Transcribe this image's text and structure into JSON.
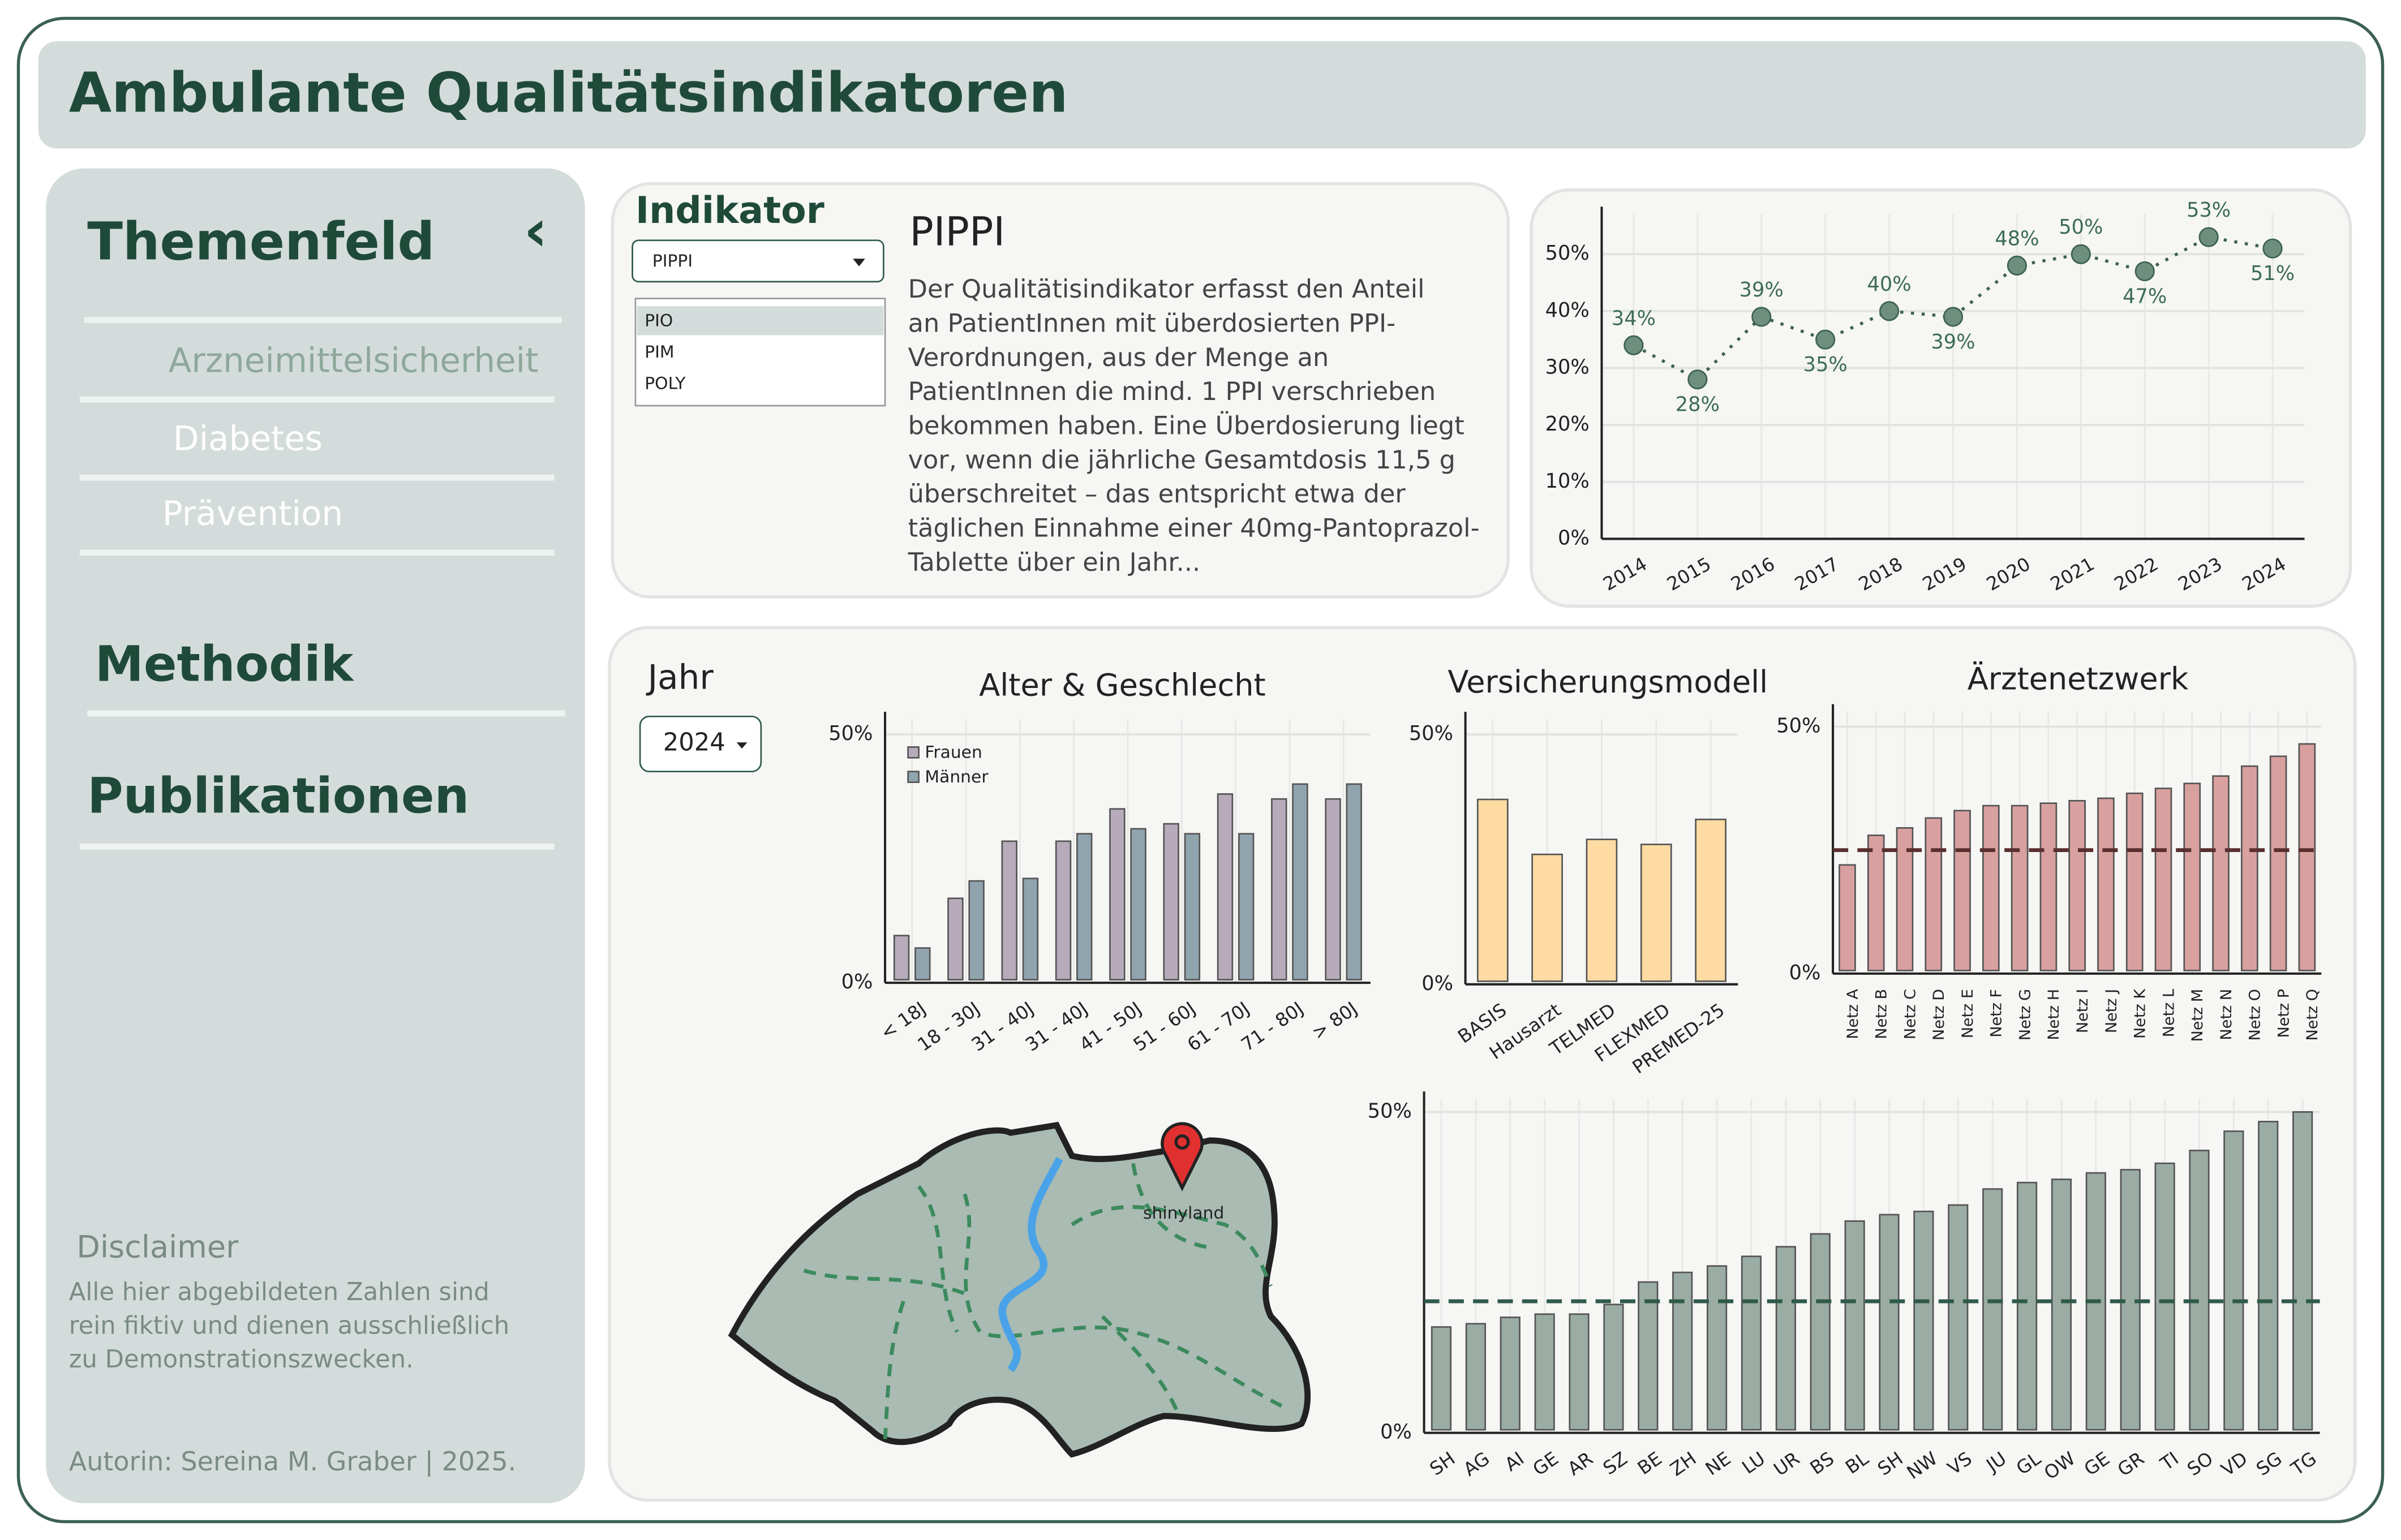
{
  "header": {
    "title": "Ambulante Qualitätsindikatoren"
  },
  "sidebar": {
    "themenfeld": "Themenfeld",
    "collapse_icon": "‹",
    "items": [
      "Arzneimittelsicherheit",
      "Diabetes",
      "Prävention"
    ],
    "methodik": "Methodik",
    "publikationen": "Publikationen",
    "disclaimer_title": "Disclaimer",
    "disclaimer_lines": [
      "Alle hier abgebildeten Zahlen sind",
      "rein fiktiv und dienen ausschließlich",
      "zu Demonstrationszwecken."
    ],
    "author": "Autorin: Sereina M. Graber | 2025."
  },
  "indicator": {
    "label": "Indikator",
    "selected": "PIPPI",
    "options": [
      "PIO",
      "PIM",
      "POLY"
    ],
    "heading": "PIPPI",
    "description_lines": [
      "Der Qualitätisindikator erfasst den Anteil",
      "an PatientInnen mit überdosierten PPI-",
      "Verordnungen, aus der Menge an",
      "PatientInnen die mind. 1 PPI verschrieben",
      "bekommen haben. Eine Überdosierung liegt",
      "vor, wenn die jährliche Gesamtdosis 11,5 g",
      "überschreitet – das entspricht etwa der",
      "täglichen Einnahme einer 40mg-Pantoprazol-",
      "Tablette über ein Jahr..."
    ]
  },
  "year_filter": {
    "label": "Jahr",
    "selected": "2024"
  },
  "map": {
    "label": "shinyland"
  },
  "chart_data": [
    {
      "type": "line",
      "categories": [
        "2014",
        "2015",
        "2016",
        "2017",
        "2018",
        "2019",
        "2020",
        "2021",
        "2022",
        "2023",
        "2024"
      ],
      "values": [
        34,
        28,
        39,
        35,
        40,
        39,
        48,
        50,
        47,
        53,
        51
      ],
      "value_labels": [
        "34%",
        "28%",
        "39%",
        "35%",
        "40%",
        "39%",
        "48%",
        "50%",
        "47%",
        "53%",
        "51%"
      ],
      "color": "#6e8f7e",
      "ylim": [
        0,
        57
      ],
      "yticks": [
        {
          "value": 0,
          "label": "0%"
        },
        {
          "value": 10,
          "label": "10%"
        },
        {
          "value": 20,
          "label": "20%"
        },
        {
          "value": 30,
          "label": "30%"
        },
        {
          "value": 40,
          "label": "40%"
        },
        {
          "value": 50,
          "label": "50%"
        }
      ],
      "grid": true
    },
    {
      "type": "bar",
      "title": "Alter & Geschlecht",
      "categories": [
        "< 18J",
        "18 - 30J",
        "31 - 40J",
        "31 - 40J",
        "41 - 50J",
        "51 - 60J",
        "61 - 70J",
        "71 - 80J",
        "> 80J"
      ],
      "series": [
        {
          "name": "Frauen",
          "color": "#b7abbb",
          "values": [
            9.5,
            17,
            28.5,
            28.5,
            35,
            32,
            38,
            37,
            37
          ]
        },
        {
          "name": "Männer",
          "color": "#90a4ae",
          "values": [
            7,
            20.5,
            21,
            30,
            31,
            30,
            30,
            40,
            40
          ]
        }
      ],
      "legend": "top-left",
      "ylim": [
        0,
        53
      ],
      "yticks": [
        {
          "value": 0,
          "label": "0%"
        },
        {
          "value": 50,
          "label": "50%"
        }
      ],
      "grid": true
    },
    {
      "type": "bar",
      "title": "Versicherungsmodell",
      "categories": [
        "BASIS",
        "Hausarzt",
        "TELMED",
        "FLEXMED",
        "PREMED-25"
      ],
      "values": [
        37,
        26,
        29,
        28,
        33
      ],
      "color": "#fddba3",
      "ylim": [
        0,
        53
      ],
      "yticks": [
        {
          "value": 0,
          "label": "0%"
        },
        {
          "value": 50,
          "label": "50%"
        }
      ],
      "grid": true
    },
    {
      "type": "bar",
      "title": "Ärztenetzwerk",
      "categories": [
        "Netz A",
        "Netz B",
        "Netz C",
        "Netz D",
        "Netz E",
        "Netz F",
        "Netz G",
        "Netz H",
        "Netz I",
        "Netz J",
        "Netz K",
        "Netz L",
        "Netz M",
        "Netz N",
        "Netz O",
        "Netz P",
        "Netz Q"
      ],
      "values": [
        22,
        28,
        29.5,
        31.5,
        33,
        34,
        34,
        34.5,
        35,
        35.5,
        36.5,
        37.5,
        38.5,
        40,
        42,
        44,
        46.5
      ],
      "color": "#d9a0a0",
      "reference_line": 25,
      "ylim": [
        0,
        53
      ],
      "yticks": [
        {
          "value": 0,
          "label": "0%"
        },
        {
          "value": 50,
          "label": "50%"
        }
      ],
      "grid": true
    },
    {
      "type": "bar",
      "categories": [
        "SH",
        "AG",
        "AI",
        "GE",
        "AR",
        "SZ",
        "BE",
        "ZH",
        "NE",
        "LU",
        "UR",
        "BS",
        "BL",
        "SH",
        "NW",
        "VS",
        "JU",
        "GL",
        "OW",
        "GE",
        "GR",
        "TI",
        "SO",
        "VD",
        "SG",
        "TG"
      ],
      "values": [
        16.5,
        17,
        18,
        18.5,
        18.5,
        20,
        23.5,
        25,
        26,
        27.5,
        29,
        31,
        33,
        34,
        34.5,
        35.5,
        38,
        39,
        39.5,
        40.5,
        41,
        42,
        44,
        47,
        48.5,
        50
      ],
      "color": "#9aaca3",
      "reference_line": 20.5,
      "ylim": [
        0,
        52
      ],
      "yticks": [
        {
          "value": 0,
          "label": "0%"
        },
        {
          "value": 50,
          "label": "50%"
        }
      ],
      "grid": true
    }
  ]
}
